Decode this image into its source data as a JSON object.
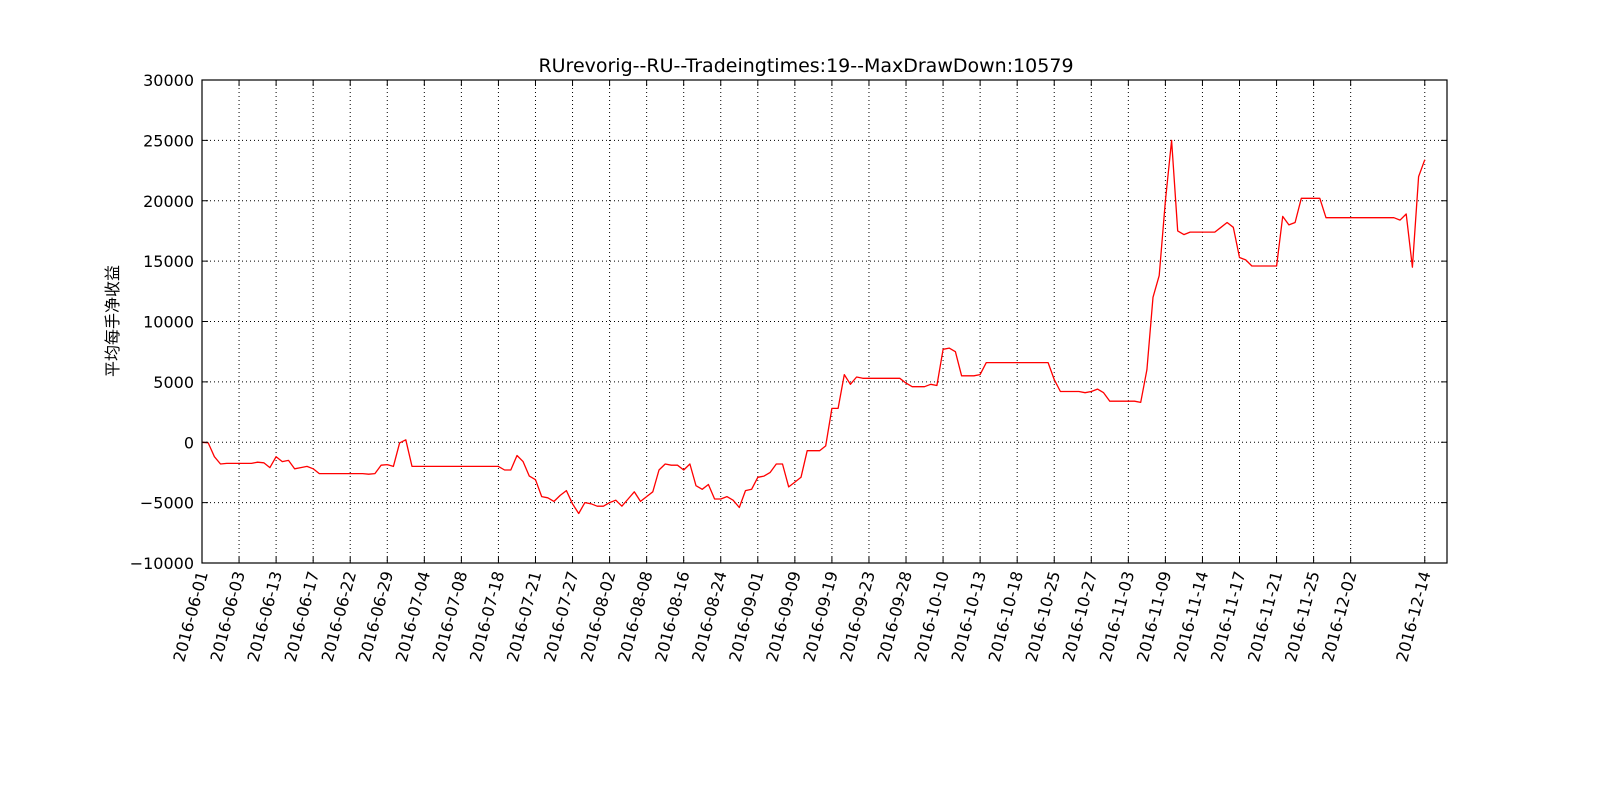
{
  "chart_data": {
    "type": "line",
    "title": "RUrevorig--RU--Tradeingtimes:19--MaxDrawDown:10579",
    "xlabel": "",
    "ylabel": "平均每手净收益",
    "ylim": [
      -10000,
      30000
    ],
    "yticks": [
      -10000,
      -5000,
      0,
      5000,
      10000,
      15000,
      20000,
      25000,
      30000
    ],
    "ytick_labels": [
      "−10000",
      "−5000",
      "0",
      "5000",
      "10000",
      "15000",
      "20000",
      "25000",
      "30000"
    ],
    "xticks": [
      "2016-06-01",
      "2016-06-03",
      "2016-06-13",
      "2016-06-17",
      "2016-06-22",
      "2016-06-29",
      "2016-07-04",
      "2016-07-08",
      "2016-07-18",
      "2016-07-21",
      "2016-07-27",
      "2016-08-02",
      "2016-08-08",
      "2016-08-16",
      "2016-08-24",
      "2016-09-01",
      "2016-09-09",
      "2016-09-19",
      "2016-09-23",
      "2016-09-28",
      "2016-10-10",
      "2016-10-13",
      "2016-10-18",
      "2016-10-25",
      "2016-10-27",
      "2016-11-03",
      "2016-11-09",
      "2016-11-14",
      "2016-11-17",
      "2016-11-21",
      "2016-11-25",
      "2016-12-02",
      "2016-12-14"
    ],
    "xtick_positions": [
      0,
      5,
      10,
      15,
      20,
      25,
      30,
      35,
      40,
      45,
      50,
      55,
      60,
      65,
      70,
      75,
      80,
      85,
      90,
      95,
      100,
      105,
      110,
      115,
      120,
      125,
      130,
      135,
      140,
      145,
      150,
      155,
      165
    ],
    "xlim": [
      0,
      168
    ],
    "grid": true,
    "color": "#ff0000",
    "series": [
      {
        "values": [
          0,
          -50,
          -1200,
          -1800,
          -1750,
          -1750,
          -1750,
          -1750,
          -1750,
          -1650,
          -1700,
          -2100,
          -1200,
          -1600,
          -1500,
          -2200,
          -2100,
          -2000,
          -2200,
          -2600,
          -2600,
          -2600,
          -2600,
          -2600,
          -2600,
          -2600,
          -2600,
          -2650,
          -2600,
          -1900,
          -1850,
          -2000,
          -50,
          200,
          -2000,
          -2000,
          -2000,
          -2000,
          -2000,
          -2000,
          -2000,
          -2000,
          -2000,
          -2000,
          -2000,
          -2000,
          -2000,
          -2000,
          -2000,
          -2300,
          -2300,
          -1100,
          -1600,
          -2800,
          -3100,
          -4500,
          -4600,
          -4900,
          -4400,
          -4000,
          -5100,
          -5900,
          -5000,
          -5100,
          -5300,
          -5300,
          -5000,
          -4800,
          -5300,
          -4700,
          -4100,
          -4900,
          -4500,
          -4100,
          -2300,
          -1800,
          -1900,
          -1900,
          -2300,
          -1800,
          -3600,
          -3900,
          -3500,
          -4700,
          -4700,
          -4500,
          -4800,
          -5400,
          -4000,
          -3900,
          -2900,
          -2800,
          -2500,
          -1800,
          -1800,
          -3700,
          -3300,
          -2900,
          -700,
          -700,
          -700,
          -300,
          2800,
          2800,
          5600,
          4800,
          5400,
          5300,
          5300,
          5300,
          5300,
          5300,
          5300,
          5300,
          4900,
          4600,
          4600,
          4600,
          4800,
          4700,
          7700,
          7800,
          7500,
          5500,
          5500,
          5500,
          5600,
          6600,
          6600,
          6600,
          6600,
          6600,
          6600,
          6600,
          6600,
          6600,
          6600,
          6600,
          5200,
          4200,
          4200,
          4200,
          4200,
          4100,
          4200,
          4400,
          4100,
          3400,
          3400,
          3400,
          3400,
          3400,
          3300,
          6000,
          12000,
          13800,
          20000,
          25000,
          17500,
          17200,
          17400,
          17400,
          17400,
          17400,
          17400,
          17800,
          18200,
          17800,
          15300,
          15100,
          14600,
          14600,
          14600,
          14600,
          14600,
          18700,
          18000,
          18200,
          20200,
          20200,
          20200,
          20200,
          18600,
          18600,
          18600,
          18600,
          18600,
          18600,
          18600,
          18600,
          18600,
          18600,
          18600,
          18600,
          18400,
          18900,
          14500,
          22000,
          23400
        ]
      }
    ]
  }
}
